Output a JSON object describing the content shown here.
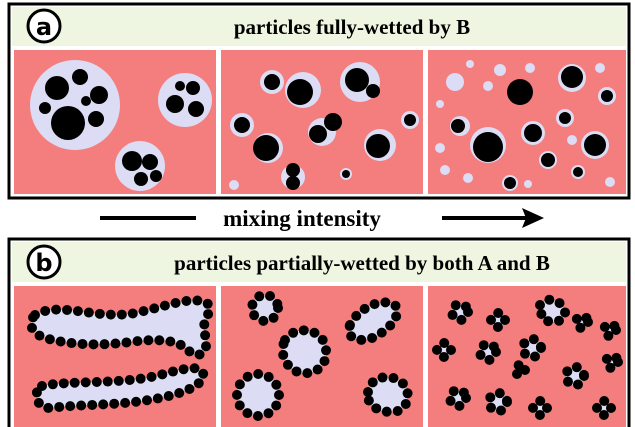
{
  "panels": [
    {
      "label": "a",
      "title": "particles fully-wetted by B"
    },
    {
      "label": "b",
      "title": "particles partially-wetted by both A and B"
    }
  ],
  "arrow_label": "mixing intensity"
}
